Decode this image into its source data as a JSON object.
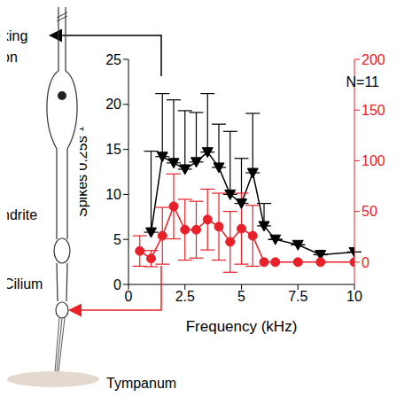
{
  "chart_data": {
    "type": "line",
    "annotation": "N=11",
    "x_label": "Frequency (kHz)",
    "y_label": "Spikes 0.25s⁻¹",
    "xlim": [
      0,
      10
    ],
    "xticks": [
      0,
      2.5,
      5,
      7.5,
      10
    ],
    "ylim": [
      0,
      25
    ],
    "yticks": [
      0,
      5,
      10,
      15,
      20,
      25
    ],
    "y2lim": [
      -22,
      200
    ],
    "y2ticks": [
      0,
      50,
      100,
      150,
      200
    ],
    "series": [
      {
        "color": "#000000",
        "marker": "triangle-down",
        "x": [
          1,
          1.5,
          2,
          2.5,
          3,
          3.5,
          4,
          4.5,
          5,
          5.5,
          6,
          6.5,
          7.5,
          8.5,
          10
        ],
        "values": [
          5.8,
          14.2,
          13.5,
          12.8,
          13.6,
          14.7,
          13.0,
          10.0,
          9.0,
          12.4,
          6.5,
          5.0,
          4.4,
          3.3,
          3.6
        ],
        "errors_up": [
          9,
          7,
          7,
          6.5,
          5.5,
          6.5,
          4.8,
          7,
          5,
          6.6,
          2.5,
          0,
          0,
          0,
          0
        ]
      },
      {
        "axis": "y2",
        "color": "#e8202a",
        "marker": "circle",
        "x": [
          0.5,
          1,
          1.5,
          2,
          2.5,
          3,
          3.5,
          4,
          4.5,
          5,
          5.5,
          6,
          6.5,
          7.5,
          8.5,
          10
        ],
        "values": [
          11,
          3.5,
          26,
          55,
          32,
          32,
          42,
          35,
          20,
          33,
          26,
          0,
          0,
          0,
          0,
          0
        ],
        "errors": [
          15,
          8,
          28,
          32,
          30,
          28,
          30,
          33,
          30,
          35,
          30,
          0,
          0,
          0,
          0,
          0
        ]
      }
    ]
  },
  "diagram": {
    "neuron_label_1": "king",
    "neuron_label_2": "on",
    "dendrite": "ndrite",
    "cilium": "Cilium",
    "tympanum": "Tympanum"
  }
}
